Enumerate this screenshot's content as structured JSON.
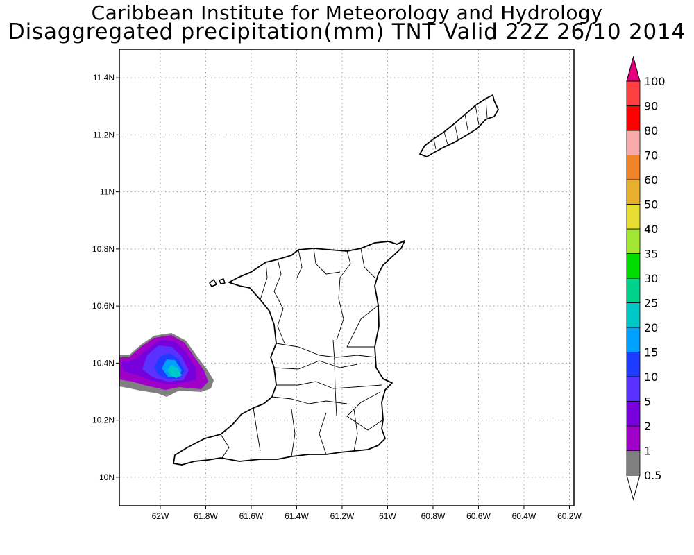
{
  "header": {
    "line1": "Caribbean Institute for Meteorology and Hydrology",
    "line2": "Disaggregated precipitation(mm) TNT Valid 22Z 26/10 2014"
  },
  "map": {
    "lon_range": [
      -62.18,
      -60.18
    ],
    "lat_range": [
      9.9,
      11.5
    ],
    "grid": "dotted",
    "x_ticks": [
      {
        "value": -62.0,
        "label": "62W"
      },
      {
        "value": -61.8,
        "label": "61.8W"
      },
      {
        "value": -61.6,
        "label": "61.6W"
      },
      {
        "value": -61.4,
        "label": "61.4W"
      },
      {
        "value": -61.2,
        "label": "61.2W"
      },
      {
        "value": -61.0,
        "label": "61W"
      },
      {
        "value": -60.8,
        "label": "60.8W"
      },
      {
        "value": -60.6,
        "label": "60.6W"
      },
      {
        "value": -60.4,
        "label": "60.4W"
      },
      {
        "value": -60.2,
        "label": "60.2W"
      }
    ],
    "y_ticks": [
      {
        "value": 10.0,
        "label": "10N"
      },
      {
        "value": 10.2,
        "label": "10.2N"
      },
      {
        "value": 10.4,
        "label": "10.4N"
      },
      {
        "value": 10.6,
        "label": "10.6N"
      },
      {
        "value": 10.8,
        "label": "10.8N"
      },
      {
        "value": 11.0,
        "label": "11N"
      },
      {
        "value": 11.2,
        "label": "11.2N"
      },
      {
        "value": 11.4,
        "label": "11.4N"
      }
    ]
  },
  "colorbar": {
    "labels": [
      "0.5",
      "1",
      "2",
      "5",
      "10",
      "15",
      "20",
      "25",
      "30",
      "35",
      "40",
      "50",
      "60",
      "70",
      "80",
      "90",
      "100"
    ],
    "colors": [
      "#808080",
      "#a000c8",
      "#7800dc",
      "#5a32ff",
      "#1e3cff",
      "#00a0ff",
      "#00c8c8",
      "#00d28c",
      "#00dc00",
      "#a0e632",
      "#e6dc32",
      "#e6af2d",
      "#f08228",
      "#faaaaa",
      "#ff0000",
      "#ff4040",
      "#e6007f"
    ]
  }
}
